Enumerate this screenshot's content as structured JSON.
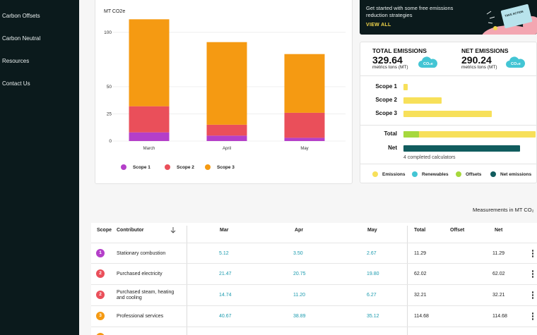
{
  "sidebar": {
    "items": [
      {
        "label": "Carbon Offsets"
      },
      {
        "label": "Carbon Neutral"
      },
      {
        "label": "Resources"
      },
      {
        "label": "Contact Us"
      }
    ]
  },
  "promo": {
    "text": "Get started with some free emissions reduction strategies",
    "link": "VIEW ALL",
    "illustration_tag": "TAKE ACTION",
    "bg_color": "#0b1a1c",
    "link_color": "#f4d84b"
  },
  "chart_data": {
    "type": "bar",
    "stacked": true,
    "ylabel": "MT CO2e",
    "categories": [
      "March",
      "April",
      "May"
    ],
    "ylim": [
      0,
      120
    ],
    "yticks": [
      0,
      25,
      50,
      100
    ],
    "series": [
      {
        "name": "Scope 1",
        "color": "#b43fc9",
        "values": [
          8,
          5,
          3
        ]
      },
      {
        "name": "Scope 2",
        "color": "#ea4f5a",
        "values": [
          24,
          10,
          23
        ]
      },
      {
        "name": "Scope 3",
        "color": "#f59a12",
        "values": [
          80,
          76,
          54
        ]
      }
    ],
    "legend_position": "bottom-left"
  },
  "emissions": {
    "total_title": "TOTAL EMISSIONS",
    "total_value": "329.64",
    "total_unit": "metrics tons (MT)",
    "net_title": "NET EMISSIONS",
    "net_value": "290.24",
    "net_unit": "metrics tons (MT)",
    "badge_text": "CO₂e",
    "bars": [
      {
        "label": "Scope 1",
        "value": 3
      },
      {
        "label": "Scope 2",
        "value": 29
      },
      {
        "label": "Scope 3",
        "value": 67
      }
    ],
    "total_label": "Total",
    "total_renewables": 12,
    "total_emissions": 100,
    "net_label": "Net",
    "net_share": 88,
    "calculators_note": "4 completed calculators",
    "legend": [
      {
        "label": "Emissions",
        "color": "#f7e05a"
      },
      {
        "label": "Renewables",
        "color": "#43c5d4"
      },
      {
        "label": "Offsets",
        "color": "#a6d83d"
      },
      {
        "label": "Net emissions",
        "color": "#115c5e"
      }
    ]
  },
  "table": {
    "caption": "Measurements in MT CO₂",
    "headers": {
      "scope": "Scope",
      "contributor": "Contributor",
      "mar": "Mar",
      "apr": "Apr",
      "may": "May",
      "total": "Total",
      "offset": "Offset",
      "net": "Net"
    },
    "rows": [
      {
        "scope": "1",
        "color": "#b43fc9",
        "contributor": "Stationary combustion",
        "mar": "5.12",
        "apr": "3.50",
        "may": "2.67",
        "total": "11.29",
        "offset": "",
        "net": "11.29"
      },
      {
        "scope": "2",
        "color": "#ea4f5a",
        "contributor": "Purchased electricity",
        "mar": "21.47",
        "apr": "20.75",
        "may": "19.80",
        "total": "62.02",
        "offset": "",
        "net": "62.02"
      },
      {
        "scope": "2",
        "color": "#ea4f5a",
        "contributor": "Purchased steam, heating and cooling",
        "mar": "14.74",
        "apr": "11.20",
        "may": "6.27",
        "total": "32.21",
        "offset": "",
        "net": "32.21"
      },
      {
        "scope": "3",
        "color": "#f59a12",
        "contributor": "Professional services",
        "mar": "40.67",
        "apr": "38.89",
        "may": "35.12",
        "total": "114.68",
        "offset": "",
        "net": "114.68"
      }
    ]
  }
}
